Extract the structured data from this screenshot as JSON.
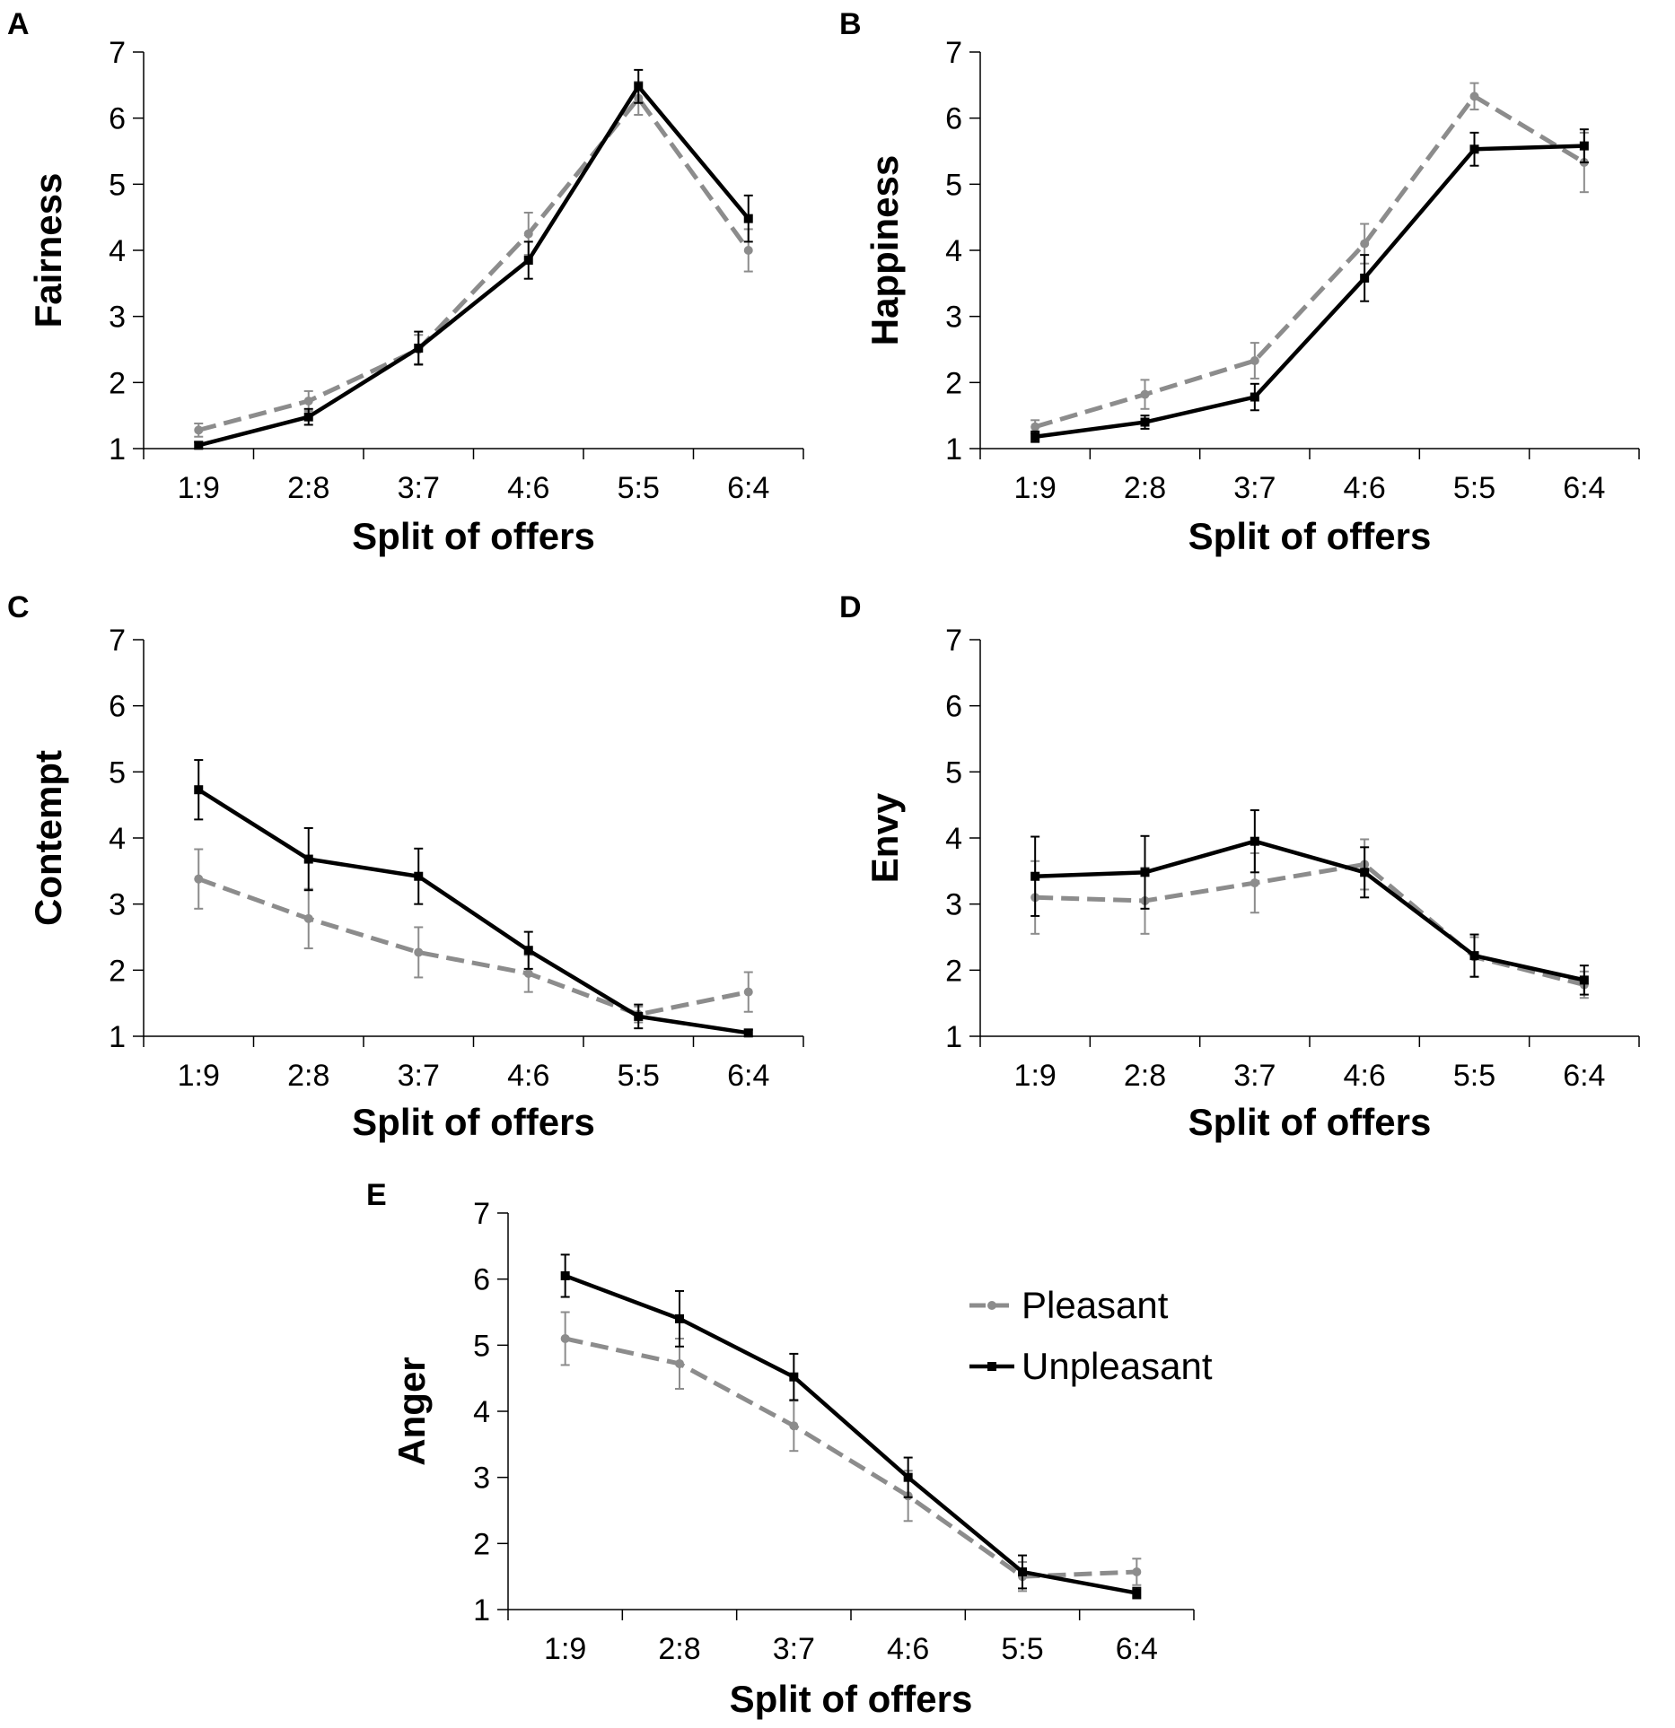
{
  "chart_data": [
    {
      "panel": "A",
      "type": "line",
      "categories": [
        "1:9",
        "2:8",
        "3:7",
        "4:6",
        "5:5",
        "6:4"
      ],
      "xlabel": "Split of offers",
      "ylabel": "Fairness",
      "ylim": [
        1,
        7
      ],
      "yticks": [
        "1",
        "2",
        "3",
        "4",
        "5",
        "6",
        "7"
      ],
      "series": [
        {
          "name": "Pleasant",
          "values": [
            1.28,
            1.72,
            2.5,
            4.25,
            6.3,
            4.0
          ],
          "errors": [
            0.1,
            0.15,
            0.22,
            0.32,
            0.25,
            0.32
          ]
        },
        {
          "name": "Unpleasant",
          "values": [
            1.05,
            1.48,
            2.52,
            3.85,
            6.48,
            4.48
          ],
          "errors": [
            0.05,
            0.12,
            0.25,
            0.28,
            0.25,
            0.35
          ]
        }
      ]
    },
    {
      "panel": "B",
      "type": "line",
      "categories": [
        "1:9",
        "2:8",
        "3:7",
        "4:6",
        "5:5",
        "6:4"
      ],
      "xlabel": "Split of offers",
      "ylabel": "Happiness",
      "ylim": [
        1,
        7
      ],
      "yticks": [
        "1",
        "2",
        "3",
        "4",
        "5",
        "6",
        "7"
      ],
      "series": [
        {
          "name": "Pleasant",
          "values": [
            1.33,
            1.82,
            2.33,
            4.1,
            6.33,
            5.33
          ],
          "errors": [
            0.1,
            0.22,
            0.27,
            0.3,
            0.2,
            0.45
          ]
        },
        {
          "name": "Unpleasant",
          "values": [
            1.18,
            1.4,
            1.78,
            3.58,
            5.53,
            5.58
          ],
          "errors": [
            0.08,
            0.1,
            0.2,
            0.35,
            0.25,
            0.25
          ]
        }
      ]
    },
    {
      "panel": "C",
      "type": "line",
      "categories": [
        "1:9",
        "2:8",
        "3:7",
        "4:6",
        "5:5",
        "6:4"
      ],
      "xlabel": "Split of offers",
      "ylabel": "Contempt",
      "ylim": [
        1,
        7
      ],
      "yticks": [
        "1",
        "2",
        "3",
        "4",
        "5",
        "6",
        "7"
      ],
      "series": [
        {
          "name": "Pleasant",
          "values": [
            3.38,
            2.78,
            2.27,
            1.95,
            1.33,
            1.67
          ],
          "errors": [
            0.45,
            0.45,
            0.38,
            0.28,
            0.12,
            0.3
          ]
        },
        {
          "name": "Unpleasant",
          "values": [
            4.73,
            3.68,
            3.42,
            2.3,
            1.3,
            1.05
          ],
          "errors": [
            0.45,
            0.47,
            0.42,
            0.28,
            0.18,
            0.05
          ]
        }
      ]
    },
    {
      "panel": "D",
      "type": "line",
      "categories": [
        "1:9",
        "2:8",
        "3:7",
        "4:6",
        "5:5",
        "6:4"
      ],
      "xlabel": "Split of offers",
      "ylabel": "Envy",
      "ylim": [
        1,
        7
      ],
      "yticks": [
        "1",
        "2",
        "3",
        "4",
        "5",
        "6",
        "7"
      ],
      "series": [
        {
          "name": "Pleasant",
          "values": [
            3.1,
            3.05,
            3.32,
            3.6,
            2.2,
            1.78
          ],
          "errors": [
            0.55,
            0.5,
            0.45,
            0.38,
            0.3,
            0.2
          ]
        },
        {
          "name": "Unpleasant",
          "values": [
            3.42,
            3.48,
            3.95,
            3.48,
            2.22,
            1.85
          ],
          "errors": [
            0.6,
            0.55,
            0.47,
            0.38,
            0.32,
            0.22
          ]
        }
      ]
    },
    {
      "panel": "E",
      "type": "line",
      "categories": [
        "1:9",
        "2:8",
        "3:7",
        "4:6",
        "5:5",
        "6:4"
      ],
      "xlabel": "Split of offers",
      "ylabel": "Anger",
      "ylim": [
        1,
        7
      ],
      "yticks": [
        "1",
        "2",
        "3",
        "4",
        "5",
        "6",
        "7"
      ],
      "series": [
        {
          "name": "Pleasant",
          "values": [
            5.1,
            4.72,
            3.78,
            2.72,
            1.5,
            1.57
          ],
          "errors": [
            0.4,
            0.38,
            0.38,
            0.38,
            0.22,
            0.2
          ]
        },
        {
          "name": "Unpleasant",
          "values": [
            6.05,
            5.4,
            4.52,
            3.0,
            1.57,
            1.25
          ],
          "errors": [
            0.32,
            0.42,
            0.35,
            0.3,
            0.25,
            0.08
          ]
        }
      ],
      "legend": {
        "position": "right",
        "entries": [
          "Pleasant",
          "Unpleasant"
        ]
      }
    }
  ],
  "styles": {
    "pleasant_color": "#8c8c8c",
    "unpleasant_color": "#000000",
    "axis_color": "#000000"
  }
}
